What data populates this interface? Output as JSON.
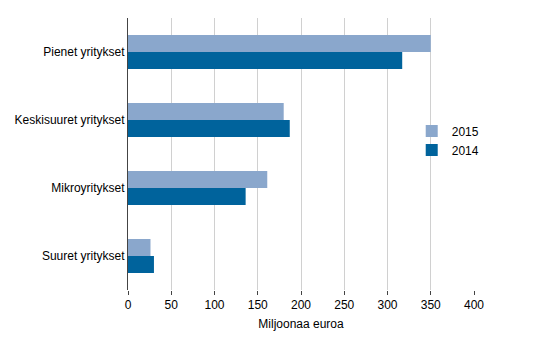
{
  "chart_data": {
    "type": "bar",
    "orientation": "horizontal",
    "categories": [
      "Pienet yritykset",
      "Keskisuuret yritykset",
      "Mikroyritykset",
      "Suuret yritykset"
    ],
    "series": [
      {
        "name": "2015",
        "color": "#8aa7cc",
        "values": [
          350,
          180,
          161,
          26
        ]
      },
      {
        "name": "2014",
        "color": "#00639c",
        "values": [
          317,
          187,
          136,
          30
        ]
      }
    ],
    "xlabel": "Miljoonaa euroa",
    "xlim": [
      0,
      400
    ],
    "xticks": [
      0,
      50,
      100,
      150,
      200,
      250,
      300,
      350,
      400
    ],
    "grid": true,
    "legend": "right"
  }
}
